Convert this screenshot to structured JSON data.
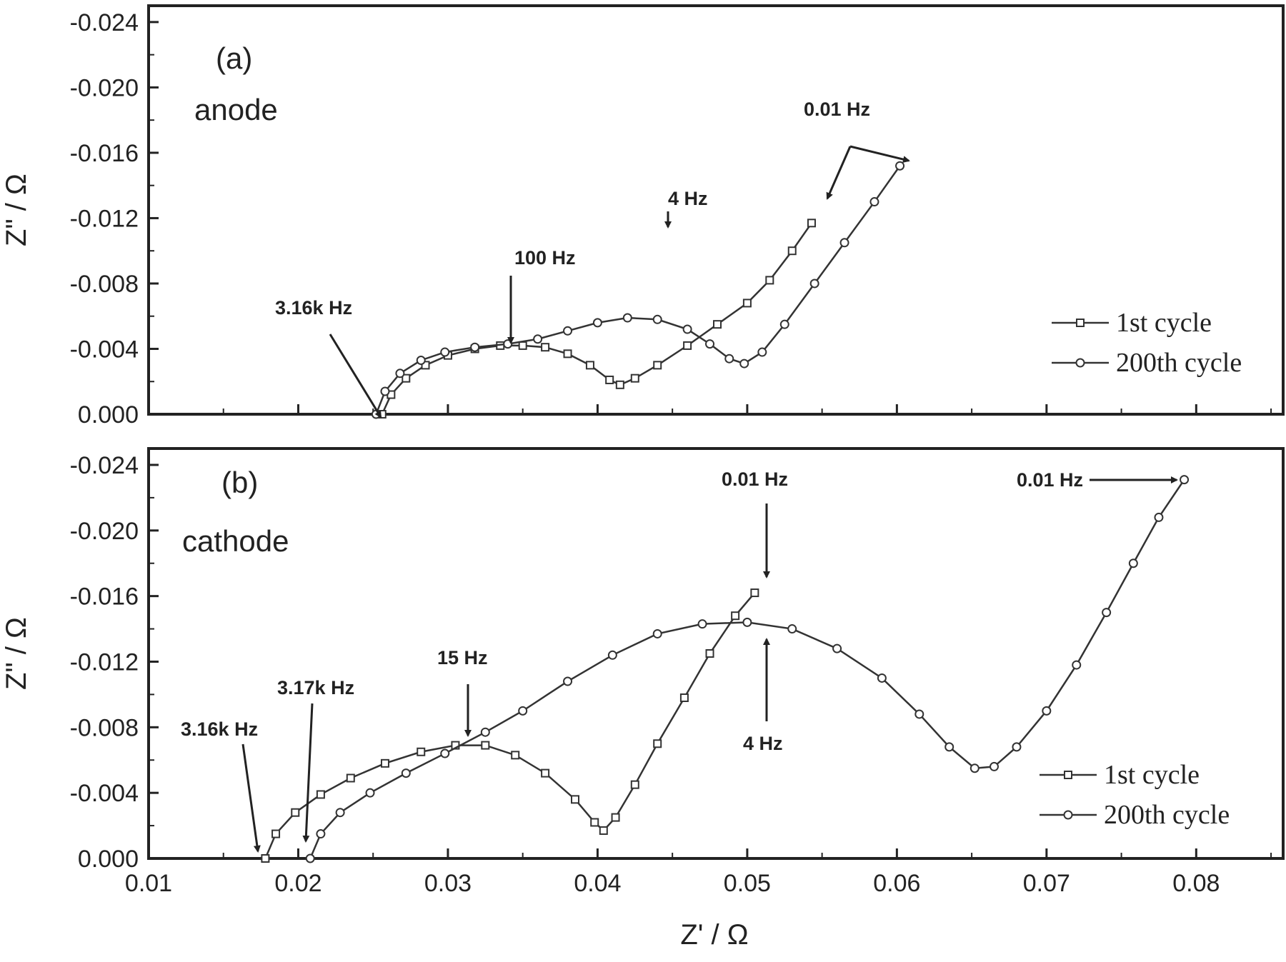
{
  "chart_data": [
    {
      "type": "scatter",
      "panel_label": "(a)",
      "electrode": "anode",
      "xlabel": "",
      "ylabel": "Z\" / Ω",
      "xlim": [
        0.01,
        0.085
      ],
      "ylim": [
        0.0,
        -0.025
      ],
      "yticks": [
        "-0.024",
        "-0.020",
        "-0.016",
        "-0.012",
        "-0.008",
        "-0.004",
        "0.000"
      ],
      "legend": {
        "position": "bottom-right",
        "entries": [
          "1st cycle",
          "200th cycle"
        ]
      },
      "series": [
        {
          "name": "1st cycle",
          "marker": "square",
          "points": [
            [
              0.0256,
              0.0
            ],
            [
              0.0262,
              -0.0012
            ],
            [
              0.0272,
              -0.0022
            ],
            [
              0.0285,
              -0.003
            ],
            [
              0.03,
              -0.0036
            ],
            [
              0.0318,
              -0.004
            ],
            [
              0.0335,
              -0.0042
            ],
            [
              0.035,
              -0.0042
            ],
            [
              0.0365,
              -0.0041
            ],
            [
              0.038,
              -0.0037
            ],
            [
              0.0395,
              -0.003
            ],
            [
              0.0408,
              -0.0021
            ],
            [
              0.0415,
              -0.0018
            ],
            [
              0.0425,
              -0.0022
            ],
            [
              0.044,
              -0.003
            ],
            [
              0.046,
              -0.0042
            ],
            [
              0.048,
              -0.0055
            ],
            [
              0.05,
              -0.0068
            ],
            [
              0.0515,
              -0.0082
            ],
            [
              0.053,
              -0.01
            ],
            [
              0.0543,
              -0.0117
            ]
          ]
        },
        {
          "name": "200th cycle",
          "marker": "circle",
          "points": [
            [
              0.0252,
              0.0
            ],
            [
              0.0258,
              -0.0014
            ],
            [
              0.0268,
              -0.0025
            ],
            [
              0.0282,
              -0.0033
            ],
            [
              0.0298,
              -0.0038
            ],
            [
              0.0318,
              -0.0041
            ],
            [
              0.034,
              -0.0043
            ],
            [
              0.036,
              -0.0046
            ],
            [
              0.038,
              -0.0051
            ],
            [
              0.04,
              -0.0056
            ],
            [
              0.042,
              -0.0059
            ],
            [
              0.044,
              -0.0058
            ],
            [
              0.046,
              -0.0052
            ],
            [
              0.0475,
              -0.0043
            ],
            [
              0.0488,
              -0.0034
            ],
            [
              0.0498,
              -0.0031
            ],
            [
              0.051,
              -0.0038
            ],
            [
              0.0525,
              -0.0055
            ],
            [
              0.0545,
              -0.008
            ],
            [
              0.0565,
              -0.0105
            ],
            [
              0.0585,
              -0.013
            ],
            [
              0.0602,
              -0.0152
            ]
          ]
        }
      ],
      "annotations": [
        "0.01 Hz",
        "4 Hz",
        "100 Hz",
        "3.16k Hz"
      ]
    },
    {
      "type": "scatter",
      "panel_label": "(b)",
      "electrode": "cathode",
      "xlabel": "Z' / Ω",
      "ylabel": "Z\" / Ω",
      "xlim": [
        0.01,
        0.085
      ],
      "ylim": [
        0.0,
        -0.025
      ],
      "xticks": [
        "0.01",
        "0.02",
        "0.03",
        "0.04",
        "0.05",
        "0.06",
        "0.07",
        "0.08"
      ],
      "yticks": [
        "-0.024",
        "-0.020",
        "-0.016",
        "-0.012",
        "-0.008",
        "-0.004",
        "0.000"
      ],
      "legend": {
        "position": "bottom-right",
        "entries": [
          "1st cycle",
          "200th cycle"
        ]
      },
      "series": [
        {
          "name": "1st cycle",
          "marker": "square",
          "points": [
            [
              0.0178,
              0.0
            ],
            [
              0.0185,
              -0.0015
            ],
            [
              0.0198,
              -0.0028
            ],
            [
              0.0215,
              -0.0039
            ],
            [
              0.0235,
              -0.0049
            ],
            [
              0.0258,
              -0.0058
            ],
            [
              0.0282,
              -0.0065
            ],
            [
              0.0305,
              -0.0069
            ],
            [
              0.0325,
              -0.0069
            ],
            [
              0.0345,
              -0.0063
            ],
            [
              0.0365,
              -0.0052
            ],
            [
              0.0385,
              -0.0036
            ],
            [
              0.0398,
              -0.0022
            ],
            [
              0.0404,
              -0.0017
            ],
            [
              0.0412,
              -0.0025
            ],
            [
              0.0425,
              -0.0045
            ],
            [
              0.044,
              -0.007
            ],
            [
              0.0458,
              -0.0098
            ],
            [
              0.0475,
              -0.0125
            ],
            [
              0.0492,
              -0.0148
            ],
            [
              0.0505,
              -0.0162
            ]
          ]
        },
        {
          "name": "200th cycle",
          "marker": "circle",
          "points": [
            [
              0.0208,
              0.0
            ],
            [
              0.0215,
              -0.0015
            ],
            [
              0.0228,
              -0.0028
            ],
            [
              0.0248,
              -0.004
            ],
            [
              0.0272,
              -0.0052
            ],
            [
              0.0298,
              -0.0064
            ],
            [
              0.0325,
              -0.0077
            ],
            [
              0.035,
              -0.009
            ],
            [
              0.038,
              -0.0108
            ],
            [
              0.041,
              -0.0124
            ],
            [
              0.044,
              -0.0137
            ],
            [
              0.047,
              -0.0143
            ],
            [
              0.05,
              -0.0144
            ],
            [
              0.053,
              -0.014
            ],
            [
              0.056,
              -0.0128
            ],
            [
              0.059,
              -0.011
            ],
            [
              0.0615,
              -0.0088
            ],
            [
              0.0635,
              -0.0068
            ],
            [
              0.0652,
              -0.0055
            ],
            [
              0.0665,
              -0.0056
            ],
            [
              0.068,
              -0.0068
            ],
            [
              0.07,
              -0.009
            ],
            [
              0.072,
              -0.0118
            ],
            [
              0.074,
              -0.015
            ],
            [
              0.0758,
              -0.018
            ],
            [
              0.0775,
              -0.0208
            ],
            [
              0.0792,
              -0.0231
            ]
          ]
        }
      ],
      "annotations": [
        "0.01 Hz",
        "0.01 Hz",
        "15 Hz",
        "4 Hz",
        "3.17k Hz",
        "3.16k Hz"
      ]
    }
  ]
}
